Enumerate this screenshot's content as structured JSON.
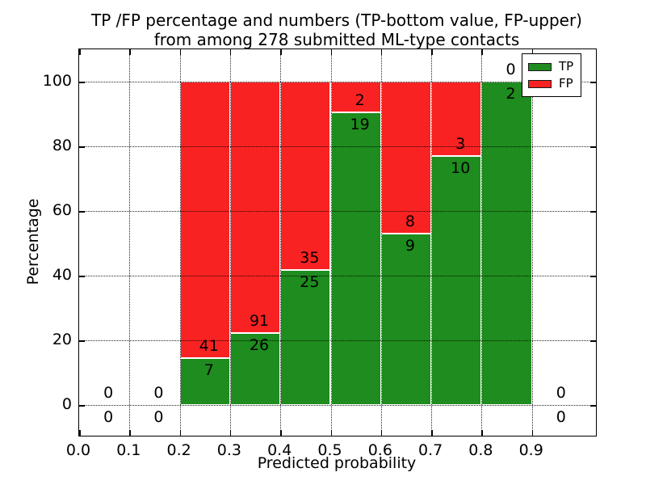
{
  "chart_data": {
    "type": "bar",
    "stacked": true,
    "title_line1": "TP /FP percentage and numbers (TP-bottom value, FP-upper)",
    "title_line2": "from among 278 submitted ML-type contacts",
    "xlabel": "Predicted probability",
    "ylabel": "Percentage",
    "xlim": [
      0.0,
      1.03
    ],
    "ylim": [
      -10,
      110
    ],
    "grid": true,
    "total_contacts": 278,
    "xticks": [
      {
        "value": 0.0,
        "label": "0.0"
      },
      {
        "value": 0.1,
        "label": "0.1"
      },
      {
        "value": 0.2,
        "label": "0.2"
      },
      {
        "value": 0.3,
        "label": "0.3"
      },
      {
        "value": 0.4,
        "label": "0.4"
      },
      {
        "value": 0.5,
        "label": "0.5"
      },
      {
        "value": 0.6,
        "label": "0.6"
      },
      {
        "value": 0.7,
        "label": "0.7"
      },
      {
        "value": 0.8,
        "label": "0.8"
      },
      {
        "value": 0.9,
        "label": "0.9"
      }
    ],
    "yticks": [
      {
        "value": 0,
        "label": "0"
      },
      {
        "value": 20,
        "label": "20"
      },
      {
        "value": 40,
        "label": "40"
      },
      {
        "value": 60,
        "label": "60"
      },
      {
        "value": 80,
        "label": "80"
      },
      {
        "value": 100,
        "label": "100"
      }
    ],
    "series": [
      {
        "name": "TP",
        "color": "#1e8c1e",
        "values": [
          0,
          0,
          7,
          26,
          25,
          19,
          9,
          10,
          2,
          0
        ]
      },
      {
        "name": "FP",
        "color": "#f92222",
        "values": [
          0,
          0,
          41,
          91,
          35,
          2,
          8,
          3,
          0,
          0
        ]
      }
    ],
    "bins": [
      {
        "x_start": 0.0,
        "x_end": 0.1,
        "tp": 0,
        "fp": 0
      },
      {
        "x_start": 0.1,
        "x_end": 0.2,
        "tp": 0,
        "fp": 0
      },
      {
        "x_start": 0.2,
        "x_end": 0.3,
        "tp": 7,
        "fp": 41
      },
      {
        "x_start": 0.3,
        "x_end": 0.4,
        "tp": 26,
        "fp": 91
      },
      {
        "x_start": 0.4,
        "x_end": 0.5,
        "tp": 25,
        "fp": 35
      },
      {
        "x_start": 0.5,
        "x_end": 0.6,
        "tp": 19,
        "fp": 2
      },
      {
        "x_start": 0.6,
        "x_end": 0.7,
        "tp": 9,
        "fp": 8
      },
      {
        "x_start": 0.7,
        "x_end": 0.8,
        "tp": 10,
        "fp": 3
      },
      {
        "x_start": 0.8,
        "x_end": 0.9,
        "tp": 2,
        "fp": 0
      },
      {
        "x_start": 0.9,
        "x_end": 1.0,
        "tp": 0,
        "fp": 0
      }
    ],
    "colors": {
      "tp": "#1e8c1e",
      "fp": "#f92222",
      "bar_edge": "#ffffff",
      "grid": "#000000",
      "text": "#000000",
      "background": "#ffffff"
    },
    "legend": {
      "position": "upper right",
      "entries": [
        {
          "label": "TP",
          "color": "#1e8c1e"
        },
        {
          "label": "FP",
          "color": "#f92222"
        }
      ]
    }
  }
}
